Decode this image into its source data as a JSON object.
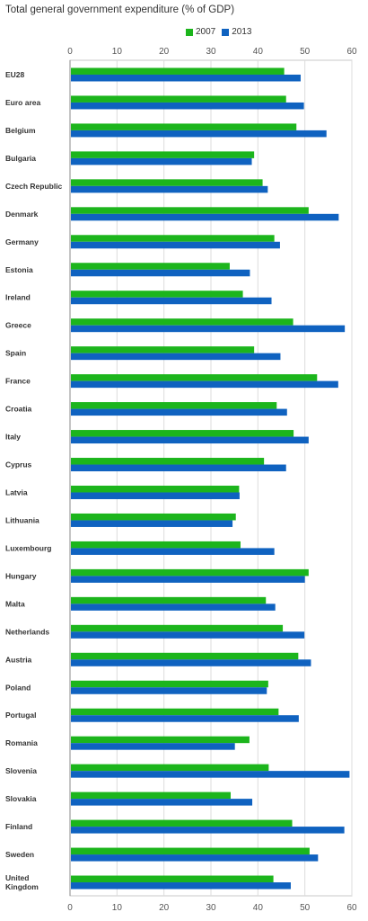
{
  "chart_data": {
    "type": "bar",
    "orientation": "horizontal",
    "title": "Total general government expenditure (% of GDP)",
    "xlim": [
      0,
      60
    ],
    "x_ticks": [
      0,
      10,
      20,
      30,
      40,
      50,
      60
    ],
    "legend_position": "top",
    "grid": true,
    "categories": [
      "EU28",
      "Euro area",
      "Belgium",
      "Bulgaria",
      "Czech Republic",
      "Denmark",
      "Germany",
      "Estonia",
      "Ireland",
      "Greece",
      "Spain",
      "France",
      "Croatia",
      "Italy",
      "Cyprus",
      "Latvia",
      "Lithuania",
      "Luxembourg",
      "Hungary",
      "Malta",
      "Netherlands",
      "Austria",
      "Poland",
      "Portugal",
      "Romania",
      "Slovenia",
      "Slovakia",
      "Finland",
      "Sweden",
      "United Kingdom"
    ],
    "series": [
      {
        "name": "2007",
        "color": "#1cb51c",
        "values": [
          45.6,
          46.0,
          48.2,
          39.2,
          41.0,
          50.8,
          43.5,
          34.0,
          36.8,
          47.5,
          39.2,
          52.6,
          44.0,
          47.6,
          41.3,
          36.0,
          35.3,
          36.3,
          50.8,
          41.7,
          45.3,
          48.6,
          42.2,
          44.4,
          38.2,
          42.3,
          34.2,
          47.3,
          51.0,
          43.3
        ]
      },
      {
        "name": "2013",
        "color": "#0f62c0",
        "values": [
          49.1,
          49.8,
          54.6,
          38.7,
          42.1,
          57.2,
          44.7,
          38.3,
          42.9,
          58.5,
          44.8,
          57.1,
          46.2,
          50.8,
          46.0,
          36.1,
          34.6,
          43.5,
          50.0,
          43.7,
          49.9,
          51.3,
          41.9,
          48.7,
          35.1,
          59.5,
          38.8,
          58.4,
          52.8,
          47.0
        ]
      }
    ]
  }
}
